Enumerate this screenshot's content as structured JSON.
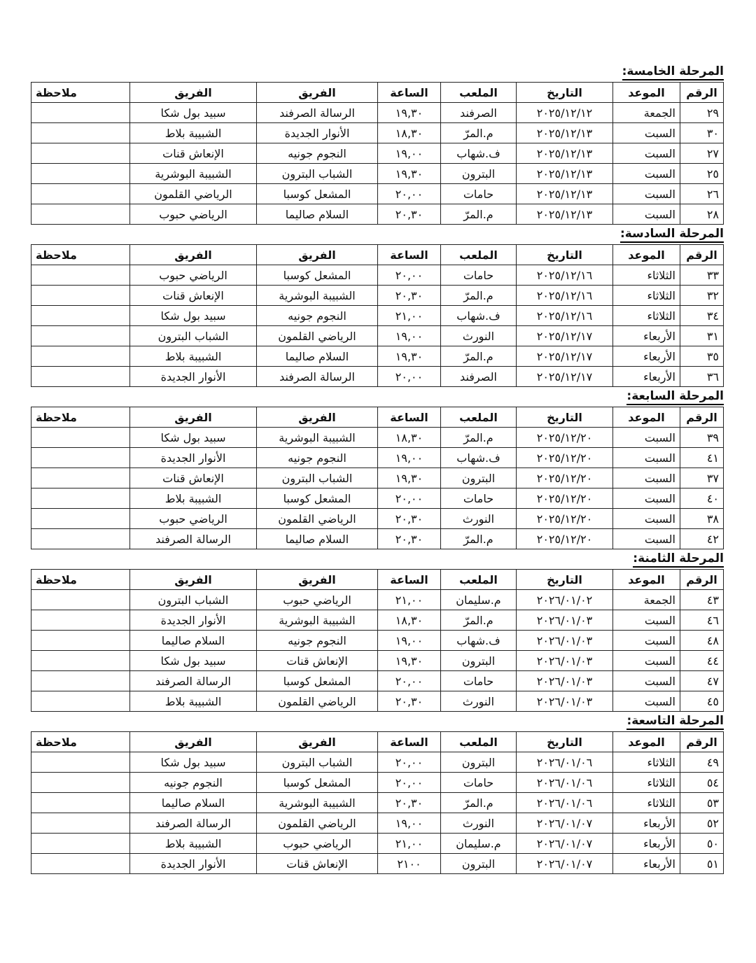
{
  "headers": [
    "الرقم",
    "الموعد",
    "التاريخ",
    "الملعب",
    "الساعة",
    "الفريق",
    "الفريق",
    "ملاحظة"
  ],
  "sections": [
    {
      "title": "المرحلة الخامسة:",
      "rows": [
        [
          "٢٩",
          "الجمعة",
          "٢٠٢٥/١٢/١٢",
          "الصرفند",
          "١٩,٣٠",
          "الرسالة الصرفند",
          "سبيد بول شكا",
          ""
        ],
        [
          "٣٠",
          "السبت",
          "٢٠٢٥/١٢/١٣",
          "م.المرّ",
          "١٨,٣٠",
          "الأنوار الجديدة",
          "الشبيبة بلاط",
          ""
        ],
        [
          "٢٧",
          "السبت",
          "٢٠٢٥/١٢/١٣",
          "ف.شهاب",
          "١٩,٠٠",
          "النجوم جونيه",
          "الإنعاش قنات",
          ""
        ],
        [
          "٢٥",
          "السبت",
          "٢٠٢٥/١٢/١٣",
          "البترون",
          "١٩,٣٠",
          "الشباب البترون",
          "الشبيبة البوشرية",
          ""
        ],
        [
          "٢٦",
          "السبت",
          "٢٠٢٥/١٢/١٣",
          "حامات",
          "٢٠,٠٠",
          "المشعل كوسبا",
          "الرياضي القلمون",
          ""
        ],
        [
          "٢٨",
          "السبت",
          "٢٠٢٥/١٢/١٣",
          "م.المرّ",
          "٢٠,٣٠",
          "السلام صاليما",
          "الرياضي حبوب",
          ""
        ]
      ]
    },
    {
      "title": "المرحلة السادسة:",
      "rows": [
        [
          "٣٣",
          "الثلاثاء",
          "٢٠٢٥/١٢/١٦",
          "حامات",
          "٢٠,٠٠",
          "المشعل كوسبا",
          "الرياضي حبوب",
          ""
        ],
        [
          "٣٢",
          "الثلاثاء",
          "٢٠٢٥/١٢/١٦",
          "م.المرّ",
          "٢٠,٣٠",
          "الشبيبة البوشرية",
          "الإنعاش قنات",
          ""
        ],
        [
          "٣٤",
          "الثلاثاء",
          "٢٠٢٥/١٢/١٦",
          "ف.شهاب",
          "٢١,٠٠",
          "النجوم جونيه",
          "سبيد بول شكا",
          ""
        ],
        [
          "٣١",
          "الأربعاء",
          "٢٠٢٥/١٢/١٧",
          "النورث",
          "١٩,٠٠",
          "الرياضي القلمون",
          "الشباب البترون",
          ""
        ],
        [
          "٣٥",
          "الأربعاء",
          "٢٠٢٥/١٢/١٧",
          "م.المرّ",
          "١٩,٣٠",
          "السلام صاليما",
          "الشبيبة بلاط",
          ""
        ],
        [
          "٣٦",
          "الأربعاء",
          "٢٠٢٥/١٢/١٧",
          "الصرفند",
          "٢٠,٠٠",
          "الرسالة الصرفند",
          "الأنوار الجديدة",
          ""
        ]
      ]
    },
    {
      "title": "المرحلة السابعة:",
      "rows": [
        [
          "٣٩",
          "السبت",
          "٢٠٢٥/١٢/٢٠",
          "م.المرّ",
          "١٨,٣٠",
          "الشبيبة البوشرية",
          "سبيد بول شكا",
          ""
        ],
        [
          "٤١",
          "السبت",
          "٢٠٢٥/١٢/٢٠",
          "ف.شهاب",
          "١٩,٠٠",
          "النجوم جونيه",
          "الأنوار الجديدة",
          ""
        ],
        [
          "٣٧",
          "السبت",
          "٢٠٢٥/١٢/٢٠",
          "البترون",
          "١٩,٣٠",
          "الشباب البترون",
          "الإنعاش قنات",
          ""
        ],
        [
          "٤٠",
          "السبت",
          "٢٠٢٥/١٢/٢٠",
          "حامات",
          "٢٠,٠٠",
          "المشعل كوسبا",
          "الشبيبة بلاط",
          ""
        ],
        [
          "٣٨",
          "السبت",
          "٢٠٢٥/١٢/٢٠",
          "النورث",
          "٢٠,٣٠",
          "الرياضي القلمون",
          "الرياضي حبوب",
          ""
        ],
        [
          "٤٢",
          "السبت",
          "٢٠٢٥/١٢/٢٠",
          "م.المرّ",
          "٢٠,٣٠",
          "السلام صاليما",
          "الرسالة الصرفند",
          ""
        ]
      ]
    },
    {
      "title": "المرحلة الثامنة:",
      "rows": [
        [
          "٤٣",
          "الجمعة",
          "٢٠٢٦/٠١/٠٢",
          "م.سليمان",
          "٢١,٠٠",
          "الرياضي حبوب",
          "الشباب البترون",
          ""
        ],
        [
          "٤٦",
          "السبت",
          "٢٠٢٦/٠١/٠٣",
          "م.المرّ",
          "١٨,٣٠",
          "الشبيبة البوشرية",
          "الأنوار الجديدة",
          ""
        ],
        [
          "٤٨",
          "السبت",
          "٢٠٢٦/٠١/٠٣",
          "ف.شهاب",
          "١٩,٠٠",
          "النجوم جونيه",
          "السلام صاليما",
          ""
        ],
        [
          "٤٤",
          "السبت",
          "٢٠٢٦/٠١/٠٣",
          "البترون",
          "١٩,٣٠",
          "الإنعاش قنات",
          "سبيد بول شكا",
          ""
        ],
        [
          "٤٧",
          "السبت",
          "٢٠٢٦/٠١/٠٣",
          "حامات",
          "٢٠,٠٠",
          "المشعل كوسبا",
          "الرسالة الصرفند",
          ""
        ],
        [
          "٤٥",
          "السبت",
          "٢٠٢٦/٠١/٠٣",
          "النورث",
          "٢٠,٣٠",
          "الرياضي القلمون",
          "الشبيبة بلاط",
          ""
        ]
      ]
    },
    {
      "title": "المرحلة التاسعة:",
      "rows": [
        [
          "٤٩",
          "الثلاثاء",
          "٢٠٢٦/٠١/٠٦",
          "البترون",
          "٢٠,٠٠",
          "الشباب البترون",
          "سبيد بول شكا",
          ""
        ],
        [
          "٥٤",
          "الثلاثاء",
          "٢٠٢٦/٠١/٠٦",
          "حامات",
          "٢٠,٠٠",
          "المشعل كوسبا",
          "النجوم جونيه",
          ""
        ],
        [
          "٥٣",
          "الثلاثاء",
          "٢٠٢٦/٠١/٠٦",
          "م.المرّ",
          "٢٠,٣٠",
          "الشبيبة البوشرية",
          "السلام صاليما",
          ""
        ],
        [
          "٥٢",
          "الأربعاء",
          "٢٠٢٦/٠١/٠٧",
          "النورث",
          "١٩,٠٠",
          "الرياضي القلمون",
          "الرسالة الصرفند",
          ""
        ],
        [
          "٥٠",
          "الأربعاء",
          "٢٠٢٦/٠١/٠٧",
          "م.سليمان",
          "٢١,٠٠",
          "الرياضي حبوب",
          "الشبيبة بلاط",
          ""
        ],
        [
          "٥١",
          "الأربعاء",
          "٢٠٢٦/٠١/٠٧",
          "البترون",
          "٢١٠٠",
          "الإنعاش قنات",
          "الأنوار الجديدة",
          ""
        ]
      ]
    }
  ]
}
